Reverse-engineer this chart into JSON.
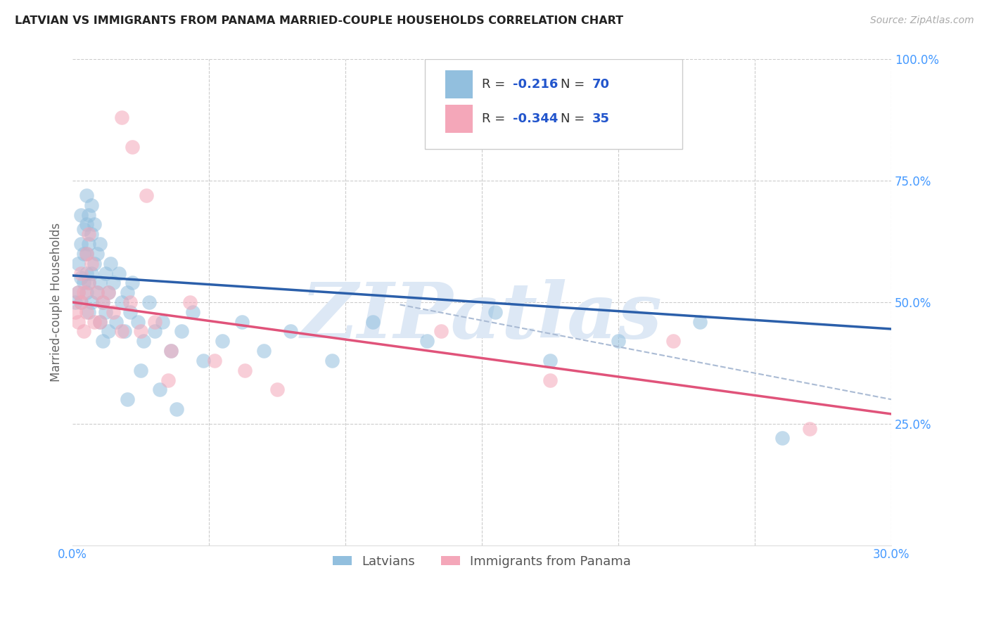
{
  "title": "LATVIAN VS IMMIGRANTS FROM PANAMA MARRIED-COUPLE HOUSEHOLDS CORRELATION CHART",
  "source": "Source: ZipAtlas.com",
  "ylabel": "Married-couple Households",
  "xlim": [
    0.0,
    0.3
  ],
  "ylim": [
    0.0,
    1.0
  ],
  "ytick_labels": [
    "25.0%",
    "50.0%",
    "75.0%",
    "100.0%"
  ],
  "ytick_vals": [
    0.25,
    0.5,
    0.75,
    1.0
  ],
  "xtick_labels": [
    "0.0%",
    "30.0%"
  ],
  "xtick_vals": [
    0.0,
    0.3
  ],
  "latvian_color": "#92bfde",
  "panama_color": "#f4a7b9",
  "latvian_line_color": "#2b5faa",
  "panama_line_color": "#e0537a",
  "dashed_line_color": "#aabbd4",
  "R_latvian": -0.216,
  "N_latvian": 70,
  "R_panama": -0.344,
  "N_panama": 35,
  "background_color": "#ffffff",
  "grid_color": "#cccccc",
  "watermark": "ZIPatlas",
  "legend_label_1": "Latvians",
  "legend_label_2": "Immigrants from Panama",
  "lv_line_x0": 0.0,
  "lv_line_y0": 0.555,
  "lv_line_x1": 0.3,
  "lv_line_y1": 0.445,
  "pan_line_x0": 0.0,
  "pan_line_y0": 0.5,
  "pan_line_x1": 0.3,
  "pan_line_y1": 0.27,
  "dash_line_x0": 0.12,
  "dash_line_y0": 0.495,
  "dash_line_x1": 0.3,
  "dash_line_y1": 0.3,
  "latvian_x": [
    0.001,
    0.002,
    0.002,
    0.003,
    0.003,
    0.003,
    0.003,
    0.004,
    0.004,
    0.004,
    0.005,
    0.005,
    0.005,
    0.005,
    0.005,
    0.006,
    0.006,
    0.006,
    0.006,
    0.007,
    0.007,
    0.007,
    0.007,
    0.008,
    0.008,
    0.009,
    0.009,
    0.01,
    0.01,
    0.01,
    0.011,
    0.011,
    0.012,
    0.012,
    0.013,
    0.013,
    0.014,
    0.015,
    0.016,
    0.017,
    0.018,
    0.019,
    0.02,
    0.021,
    0.022,
    0.024,
    0.026,
    0.028,
    0.03,
    0.033,
    0.036,
    0.04,
    0.044,
    0.048,
    0.055,
    0.062,
    0.07,
    0.08,
    0.095,
    0.11,
    0.13,
    0.155,
    0.175,
    0.2,
    0.23,
    0.26,
    0.02,
    0.025,
    0.032,
    0.038
  ],
  "latvian_y": [
    0.5,
    0.52,
    0.58,
    0.55,
    0.62,
    0.68,
    0.5,
    0.54,
    0.6,
    0.65,
    0.52,
    0.6,
    0.66,
    0.72,
    0.56,
    0.48,
    0.54,
    0.62,
    0.68,
    0.5,
    0.56,
    0.64,
    0.7,
    0.58,
    0.66,
    0.52,
    0.6,
    0.46,
    0.54,
    0.62,
    0.42,
    0.5,
    0.48,
    0.56,
    0.44,
    0.52,
    0.58,
    0.54,
    0.46,
    0.56,
    0.5,
    0.44,
    0.52,
    0.48,
    0.54,
    0.46,
    0.42,
    0.5,
    0.44,
    0.46,
    0.4,
    0.44,
    0.48,
    0.38,
    0.42,
    0.46,
    0.4,
    0.44,
    0.38,
    0.46,
    0.42,
    0.48,
    0.38,
    0.42,
    0.46,
    0.22,
    0.3,
    0.36,
    0.32,
    0.28
  ],
  "panama_x": [
    0.001,
    0.002,
    0.002,
    0.003,
    0.003,
    0.004,
    0.004,
    0.005,
    0.005,
    0.006,
    0.006,
    0.007,
    0.008,
    0.009,
    0.01,
    0.011,
    0.013,
    0.015,
    0.018,
    0.021,
    0.025,
    0.03,
    0.036,
    0.043,
    0.052,
    0.063,
    0.075,
    0.135,
    0.175,
    0.22,
    0.018,
    0.022,
    0.027,
    0.035,
    0.27
  ],
  "panama_y": [
    0.48,
    0.46,
    0.52,
    0.5,
    0.56,
    0.44,
    0.52,
    0.48,
    0.6,
    0.54,
    0.64,
    0.58,
    0.46,
    0.52,
    0.46,
    0.5,
    0.52,
    0.48,
    0.44,
    0.5,
    0.44,
    0.46,
    0.4,
    0.5,
    0.38,
    0.36,
    0.32,
    0.44,
    0.34,
    0.42,
    0.88,
    0.82,
    0.72,
    0.34,
    0.24
  ]
}
